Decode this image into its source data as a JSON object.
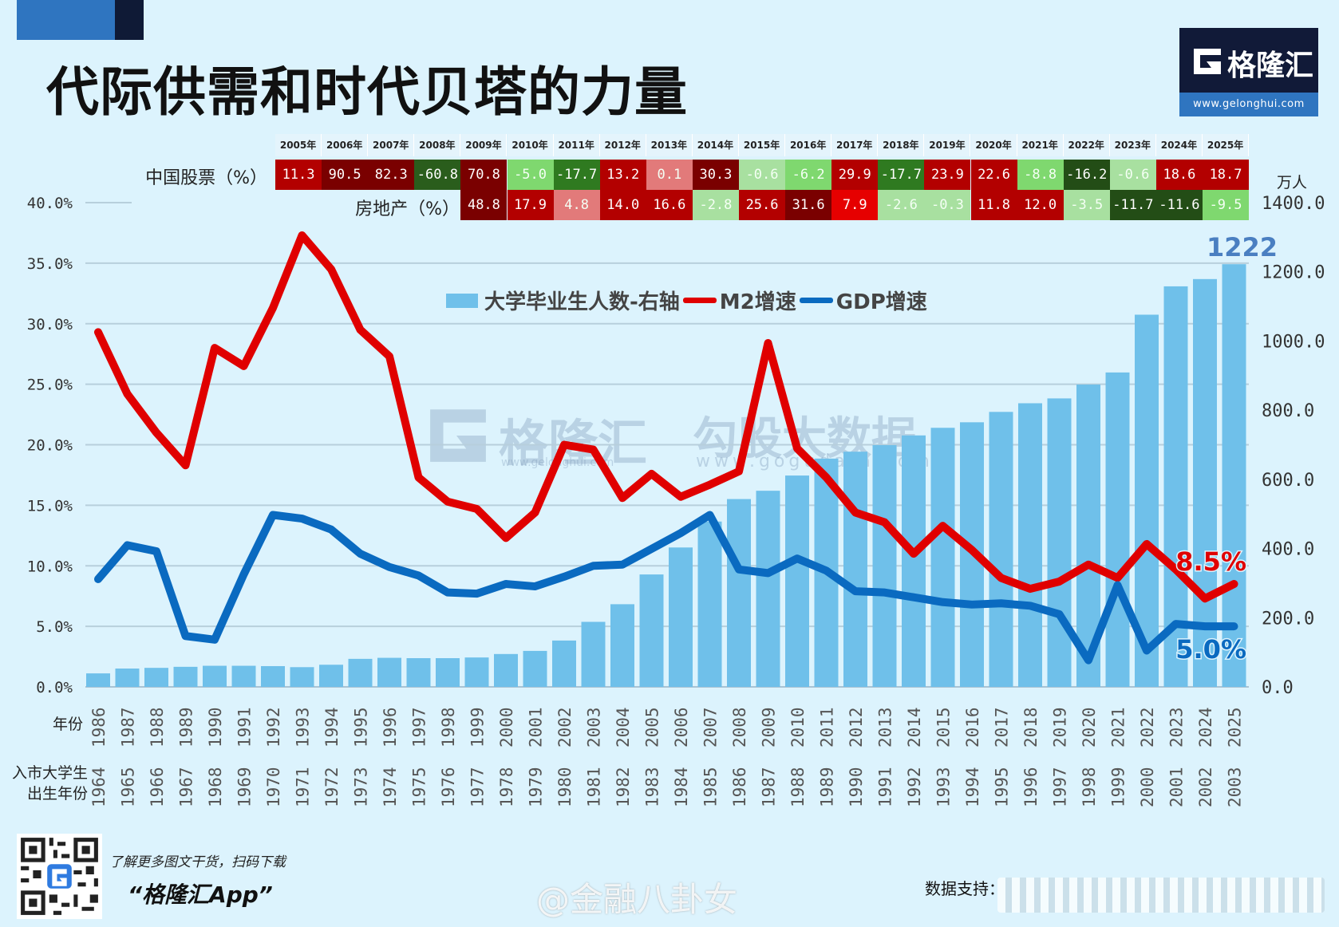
{
  "header": {
    "title": "代际供需和时代贝塔的力量",
    "logo_name": "格隆汇",
    "logo_url": "www.gelonghui.com"
  },
  "table": {
    "years": [
      "2005年",
      "2006年",
      "2007年",
      "2008年",
      "2009年",
      "2010年",
      "2011年",
      "2012年",
      "2013年",
      "2014年",
      "2015年",
      "2016年",
      "2017年",
      "2018年",
      "2019年",
      "2020年",
      "2021年",
      "2022年",
      "2023年",
      "2024年",
      "2025年"
    ],
    "stocks_label": "中国股票（%）",
    "stocks": [
      "11.3",
      "90.5",
      "82.3",
      "-60.8",
      "70.8",
      "-5.0",
      "-17.7",
      "13.2",
      "0.1",
      "30.3",
      "-0.6",
      "-6.2",
      "29.9",
      "-17.7",
      "23.9",
      "22.6",
      "-8.8",
      "-16.2",
      "-0.6",
      "18.6",
      "18.7"
    ],
    "stocks_colors": [
      "#b30000",
      "#7a0000",
      "#7a0000",
      "#2a5d1c",
      "#7a0000",
      "#7fd86f",
      "#2f7a20",
      "#b30000",
      "#e27a7a",
      "#7a0000",
      "#a8e0a0",
      "#7fd86f",
      "#b30000",
      "#2f7a20",
      "#b30000",
      "#b30000",
      "#7fd86f",
      "#234d16",
      "#a8e0a0",
      "#b30000",
      "#b30000"
    ],
    "real_estate_label": "房地产（%）",
    "real_estate_start_year": "2009年",
    "real_estate": [
      "48.8",
      "17.9",
      "4.8",
      "14.0",
      "16.6",
      "-2.8",
      "25.6",
      "31.6",
      "7.9",
      "-2.6",
      "-0.3",
      "11.8",
      "12.0",
      "-3.5",
      "-11.7",
      "-11.6",
      "-9.5"
    ],
    "real_estate_colors": [
      "#7a0000",
      "#b30000",
      "#e27a7a",
      "#b30000",
      "#b30000",
      "#a8e0a0",
      "#b30000",
      "#7a0000",
      "#e60000",
      "#a8e0a0",
      "#a8e0a0",
      "#b30000",
      "#b30000",
      "#a8e0a0",
      "#234d16",
      "#234d16",
      "#7fd86f"
    ]
  },
  "chart_data": {
    "type": "bar+line",
    "categories": [
      "1986",
      "1987",
      "1988",
      "1989",
      "1990",
      "1991",
      "1992",
      "1993",
      "1994",
      "1995",
      "1996",
      "1997",
      "1998",
      "1999",
      "2000",
      "2001",
      "2002",
      "2003",
      "2004",
      "2005",
      "2006",
      "2007",
      "2008",
      "2009",
      "2010",
      "2011",
      "2012",
      "2013",
      "2014",
      "2015",
      "2016",
      "2017",
      "2018",
      "2019",
      "2020",
      "2021",
      "2022",
      "2023",
      "2024",
      "2025"
    ],
    "birth_years": [
      "1964",
      "1965",
      "1966",
      "1967",
      "1968",
      "1969",
      "1970",
      "1971",
      "1972",
      "1973",
      "1974",
      "1975",
      "1976",
      "1977",
      "1978",
      "1979",
      "1980",
      "1981",
      "1982",
      "1983",
      "1984",
      "1985",
      "1986",
      "1987",
      "1988",
      "1989",
      "1990",
      "1991",
      "1992",
      "1993",
      "1994",
      "1995",
      "1996",
      "1997",
      "1998",
      "1999",
      "2000",
      "2001",
      "2002",
      "2003"
    ],
    "xlabel": "年份",
    "xlabel2": "入市大学生出生年份",
    "x_label2_line1": "入市大学生",
    "x_label2_line2": "出生年份",
    "yleft_ticks": [
      "0.0%",
      "5.0%",
      "10.0%",
      "15.0%",
      "20.0%",
      "25.0%",
      "30.0%",
      "35.0%",
      "40.0%"
    ],
    "yleft_lim": [
      0,
      40
    ],
    "yright_ticks": [
      "0.0",
      "200.0",
      "400.0",
      "600.0",
      "800.0",
      "1000.0",
      "1200.0",
      "1400.0"
    ],
    "yright_lim": [
      0,
      1400
    ],
    "yright_unit": "万人",
    "grid": true,
    "legend_position": "top-center",
    "series": [
      {
        "name": "大学毕业生人数-右轴",
        "type": "bar",
        "axis": "right",
        "color": "#6fc0ea",
        "values": [
          39,
          53,
          55,
          58,
          61,
          61,
          60,
          57,
          64,
          81,
          84,
          83,
          83,
          85,
          95,
          104,
          134,
          188,
          239,
          325,
          403,
          478,
          543,
          567,
          611,
          660,
          680,
          699,
          727,
          749,
          765,
          795,
          820,
          834,
          874,
          909,
          1076,
          1158,
          1179,
          1222
        ]
      },
      {
        "name": "M2增速",
        "type": "line",
        "axis": "left",
        "color": "#e00000",
        "values": [
          29.3,
          24.2,
          21.0,
          18.3,
          28.0,
          26.5,
          31.3,
          37.3,
          34.5,
          29.5,
          27.3,
          17.3,
          15.3,
          14.7,
          12.3,
          14.4,
          20.0,
          19.6,
          15.6,
          17.6,
          15.7,
          16.7,
          17.8,
          28.4,
          19.7,
          17.3,
          14.4,
          13.6,
          11.0,
          13.3,
          11.3,
          9.0,
          8.1,
          8.7,
          10.1,
          9.0,
          11.8,
          9.7,
          7.3,
          8.5
        ]
      },
      {
        "name": "GDP增速",
        "type": "line",
        "axis": "left",
        "color": "#0a6ac0",
        "values": [
          8.9,
          11.7,
          11.2,
          4.2,
          3.9,
          9.3,
          14.2,
          13.9,
          13.0,
          11.0,
          9.9,
          9.2,
          7.8,
          7.7,
          8.5,
          8.3,
          9.1,
          10.0,
          10.1,
          11.4,
          12.7,
          14.2,
          9.7,
          9.4,
          10.6,
          9.6,
          7.9,
          7.8,
          7.4,
          7.0,
          6.8,
          6.9,
          6.7,
          6.0,
          2.2,
          8.4,
          3.0,
          5.2,
          5.0,
          5.0
        ]
      }
    ],
    "annotations": {
      "bar_last": "1222",
      "m2_last": "8.5%",
      "gdp_last": "5.0%"
    }
  },
  "watermarks": {
    "gelonghui": "格隆汇",
    "gelonghui_url": "www.gelonghui.com",
    "gogu": "勾股大数据",
    "gogu_url": "www.gogudata.com"
  },
  "footer": {
    "promo": "了解更多图文干货，扫码下载",
    "app": "“格隆汇App”",
    "weibo": "@金融八卦女",
    "support": "数据支持："
  }
}
